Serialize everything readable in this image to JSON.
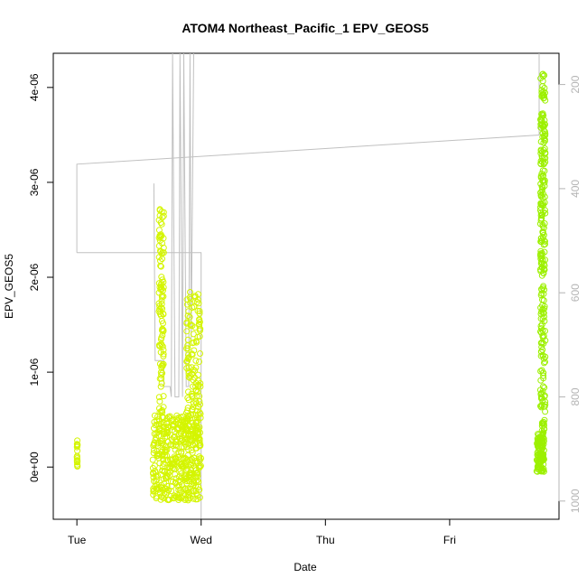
{
  "chart_data": {
    "type": "scatter",
    "title": "ATOM4 Northeast_Pacific_1 EPV_GEOS5",
    "xlabel": "Date",
    "ylabel": "EPV_GEOS5",
    "x_ticks": [
      "Tue",
      "Wed",
      "Thu",
      "Fri"
    ],
    "x_tick_values": [
      0,
      1,
      2,
      3
    ],
    "xlim": [
      -0.19,
      3.88
    ],
    "y_ticks": [
      "0e+00",
      "1e-06",
      "2e-06",
      "3e-06",
      "4e-06"
    ],
    "y_tick_values": [
      0,
      1e-06,
      2e-06,
      3e-06,
      4e-06
    ],
    "ylim": [
      -5.5e-07,
      4.36e-06
    ],
    "y2_ticks": [
      "200",
      "400",
      "600",
      "800",
      "1000"
    ],
    "y2_tick_values": [
      200,
      400,
      600,
      800,
      1000
    ],
    "y2lim": [
      1035,
      140
    ],
    "grid": false,
    "colors": {
      "yellow_green": "#d4f500",
      "bright_green": "#9cf000",
      "pressure_line": "#c0c0c0",
      "axis": "#000000",
      "y2_axis": "#b4b4b4"
    },
    "pressure_series": [
      [
        0,
        523
      ],
      [
        0,
        353
      ],
      [
        3.72,
        297
      ],
      [
        3.72,
        140
      ]
    ],
    "pressure_series_2": [
      [
        0,
        523
      ],
      [
        1.0,
        523
      ],
      [
        1.0,
        1035
      ]
    ],
    "pressure_series_3": [
      [
        0.62,
        390
      ],
      [
        0.63,
        730
      ],
      [
        0.7,
        730
      ],
      [
        0.7,
        780
      ],
      [
        0.75,
        780
      ],
      [
        0.76,
        800
      ],
      [
        0.77,
        140
      ],
      [
        0.79,
        800
      ],
      [
        0.82,
        800
      ],
      [
        0.83,
        140
      ],
      [
        0.85,
        800
      ],
      [
        0.86,
        140
      ],
      [
        0.88,
        780
      ],
      [
        0.9,
        780
      ],
      [
        0.91,
        140
      ],
      [
        0.92,
        690
      ],
      [
        0.94,
        140
      ]
    ],
    "point_groups": [
      {
        "color": "#d4f500",
        "x_range": [
          0.0,
          0.005
        ],
        "y_range": [
          -5e-08,
          2.8e-07
        ],
        "n": 18
      },
      {
        "color": "#d4f500",
        "x_range": [
          0.61,
          1.0
        ],
        "y_range": [
          -3.5e-07,
          5.5e-07
        ],
        "n": 420
      },
      {
        "color": "#d4f500",
        "x_range": [
          0.66,
          0.7
        ],
        "y_range": [
          4e-07,
          2.78e-06
        ],
        "n": 110
      },
      {
        "color": "#d4f500",
        "x_range": [
          0.88,
          0.995
        ],
        "y_range": [
          3e-07,
          1.85e-06
        ],
        "n": 140
      },
      {
        "color": "#9cf000",
        "x_range": [
          3.7,
          3.76
        ],
        "y_range": [
          -5e-08,
          3.5e-07
        ],
        "n": 120
      },
      {
        "color": "#9cf000",
        "x_range": [
          3.73,
          3.77
        ],
        "y_range": [
          3e-07,
          4.15e-06
        ],
        "n": 260
      }
    ]
  }
}
